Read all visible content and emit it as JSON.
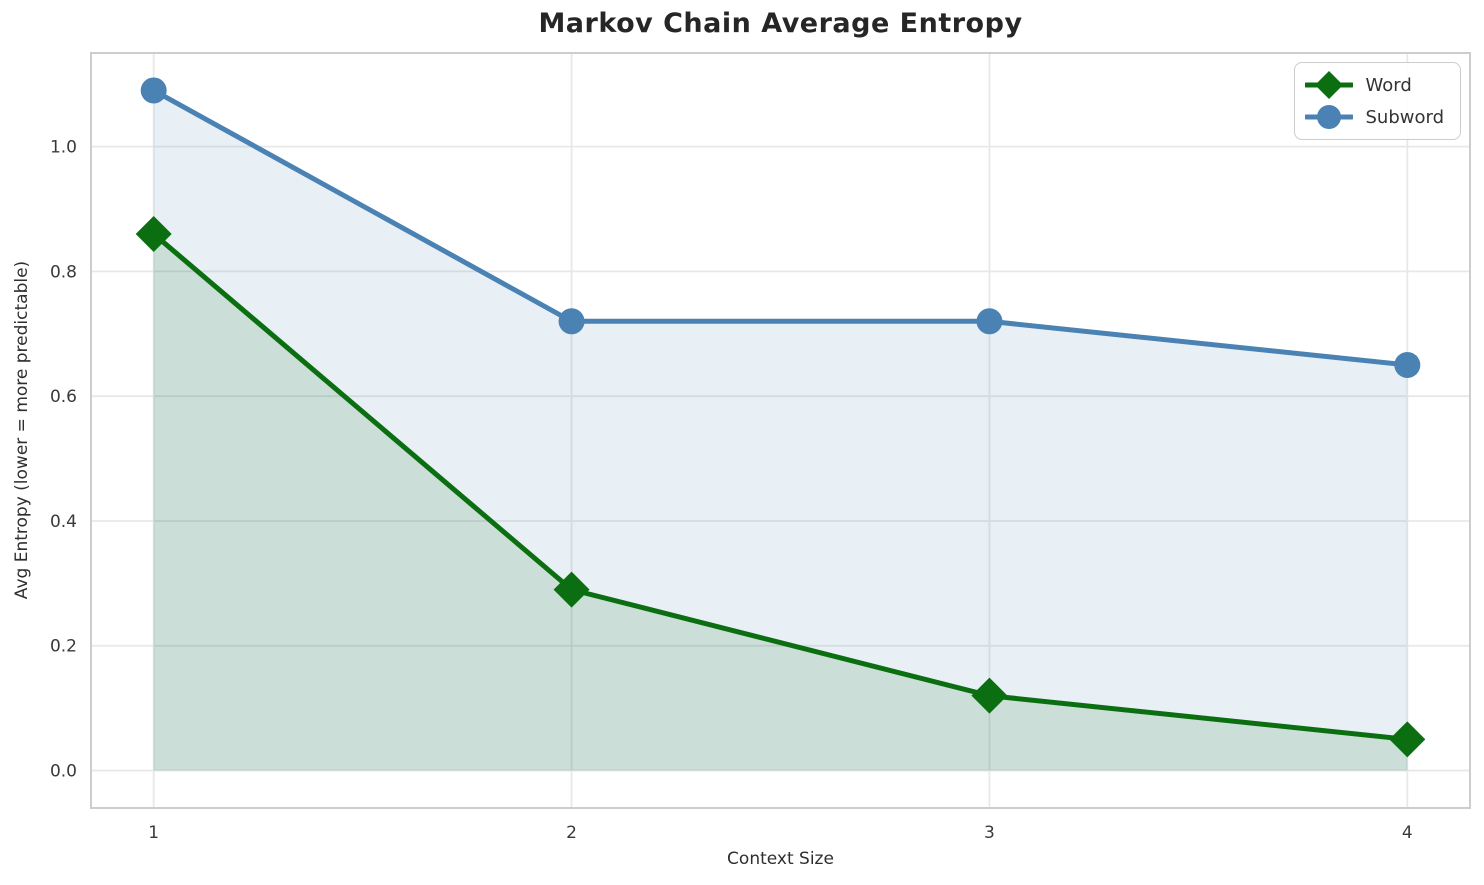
{
  "title": "Markov Chain Average Entropy",
  "chart_data": {
    "type": "line",
    "title": "Markov Chain Average Entropy",
    "xlabel": "Context Size",
    "ylabel": "Avg Entropy (lower = more predictable)",
    "x": [
      1,
      2,
      3,
      4
    ],
    "series": [
      {
        "name": "Word",
        "values": [
          0.86,
          0.29,
          0.12,
          0.05
        ],
        "color": "#0b6e11",
        "marker": "diamond",
        "fill_to_zero": true
      },
      {
        "name": "Subword",
        "values": [
          1.09,
          0.72,
          0.72,
          0.65
        ],
        "color": "#4a82b4",
        "marker": "circle",
        "fill_to_zero": true
      }
    ],
    "x_ticks": [
      "1",
      "2",
      "3",
      "4"
    ],
    "y_ticks": [
      "0.0",
      "0.2",
      "0.4",
      "0.6",
      "0.8",
      "1.0"
    ],
    "xlim": [
      0.85,
      4.15
    ],
    "ylim": [
      -0.06,
      1.15
    ],
    "grid": true,
    "legend_position": "upper right"
  },
  "colors": {
    "background": "#ffffff",
    "grid": "#e8e8e8",
    "spine": "#cdcdcd",
    "tick_text": "#3a3a3a",
    "title_text": "#262626",
    "fill_opacity": 0.13
  }
}
